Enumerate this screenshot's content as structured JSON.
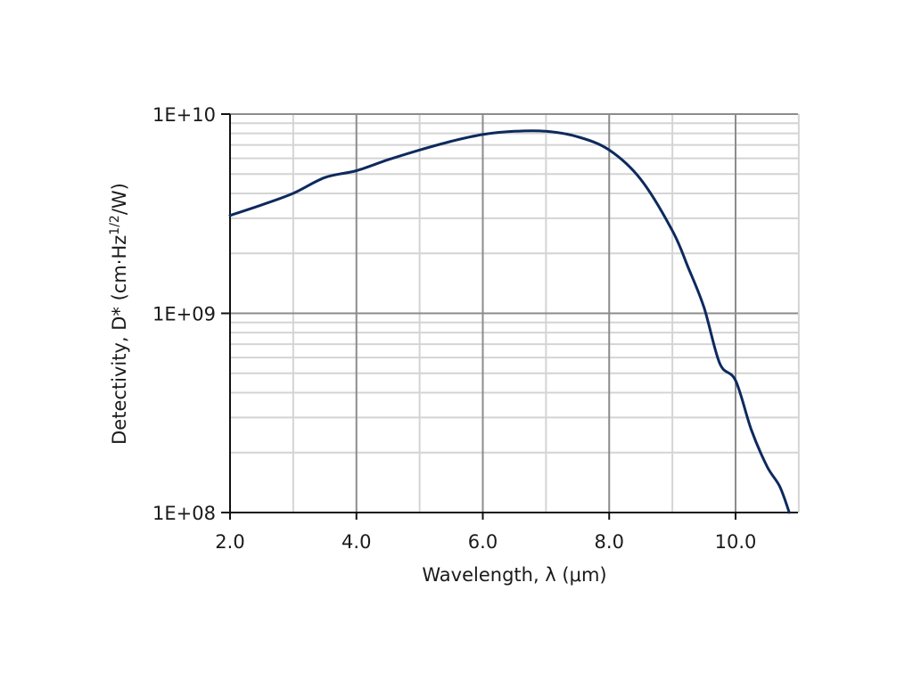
{
  "chart_data": {
    "type": "line",
    "title": "",
    "xlabel": "Wavelength, λ (μm)",
    "ylabel": "Detectivity, D* (cm·Hz1/2/W)",
    "ylabel_parts": {
      "main": "Detectivity, D* (cm·Hz",
      "sup": "1/2",
      "tail": "/W)"
    },
    "yscale": "log",
    "xlim": [
      2.0,
      11.0
    ],
    "ylim": [
      100000000.0,
      10000000000.0
    ],
    "x_ticks": [
      "2.0",
      "4.0",
      "6.0",
      "8.0",
      "10.0"
    ],
    "y_ticks": [
      "1E+08",
      "1E+09",
      "1E+10"
    ],
    "grid": true,
    "legend": null,
    "line_color": "#0d2a5e",
    "series": [
      {
        "name": "D*",
        "x": [
          2.0,
          2.5,
          3.0,
          3.5,
          4.0,
          4.5,
          5.0,
          5.5,
          6.0,
          6.5,
          7.0,
          7.5,
          8.0,
          8.5,
          9.0,
          9.25,
          9.5,
          9.75,
          10.0,
          10.25,
          10.5,
          10.7,
          10.85
        ],
        "values": [
          3100000000.0,
          3500000000.0,
          4000000000.0,
          4800000000.0,
          5200000000.0,
          5900000000.0,
          6600000000.0,
          7300000000.0,
          7900000000.0,
          8200000000.0,
          8200000000.0,
          7700000000.0,
          6600000000.0,
          4700000000.0,
          2600000000.0,
          1700000000.0,
          1070000000.0,
          560000000.0,
          460000000.0,
          260000000.0,
          170000000.0,
          135000000.0,
          100000000.0
        ]
      }
    ]
  }
}
